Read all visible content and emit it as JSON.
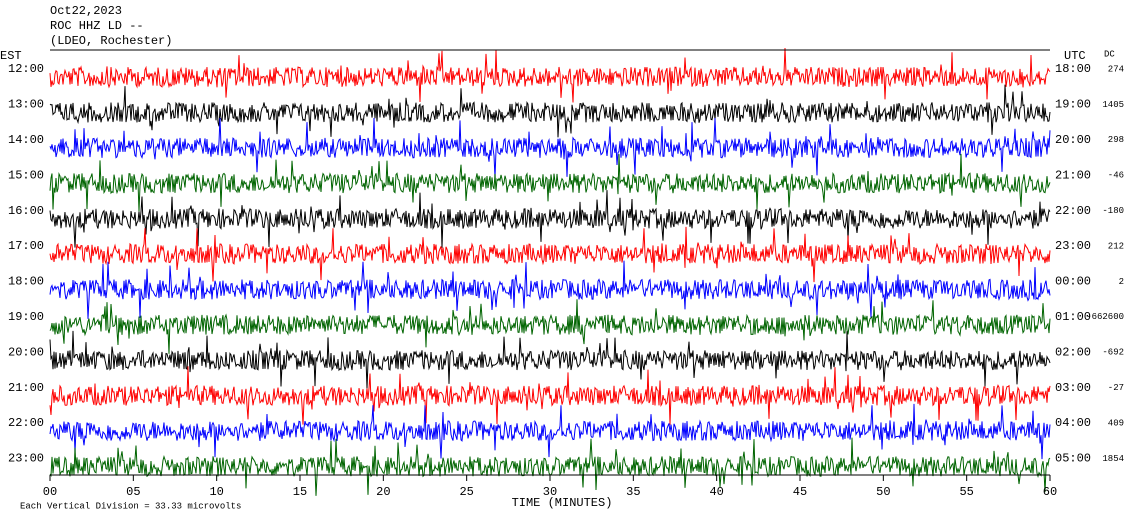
{
  "chart_data": {
    "type": "helicorder",
    "title_lines": [
      "Oct22,2023",
      "ROC HHZ LD --",
      "(LDEO, Rochester)"
    ],
    "left_axis_label": "EST",
    "right_axis_label": "UTC",
    "dc_label": "DC",
    "x_label": "TIME (MINUTES)",
    "footnote": "Each Vertical Division = 33.33 microvolts",
    "xlim": [
      0,
      60
    ],
    "xticks": [
      {
        "value": 0,
        "label": "00"
      },
      {
        "value": 5,
        "label": "05"
      },
      10,
      15,
      20,
      25,
      30,
      35,
      40,
      45,
      50,
      55,
      60
    ],
    "rows": [
      {
        "est": "12:00",
        "utc": "18:00",
        "dc": "274",
        "color": "#ff0000"
      },
      {
        "est": "13:00",
        "utc": "19:00",
        "dc": "1405",
        "color": "#000000"
      },
      {
        "est": "14:00",
        "utc": "20:00",
        "dc": "298",
        "color": "#0000ff"
      },
      {
        "est": "15:00",
        "utc": "21:00",
        "dc": "-46",
        "color": "#006400"
      },
      {
        "est": "16:00",
        "utc": "22:00",
        "dc": "-180",
        "color": "#000000"
      },
      {
        "est": "17:00",
        "utc": "23:00",
        "dc": "212",
        "color": "#ff0000"
      },
      {
        "est": "18:00",
        "utc": "00:00",
        "dc": "2",
        "color": "#0000ff"
      },
      {
        "est": "19:00",
        "utc": "01:00",
        "dc": "-662600",
        "color": "#006400"
      },
      {
        "est": "20:00",
        "utc": "02:00",
        "dc": "-692",
        "color": "#000000"
      },
      {
        "est": "21:00",
        "utc": "03:00",
        "dc": "-27",
        "color": "#ff0000"
      },
      {
        "est": "22:00",
        "utc": "04:00",
        "dc": "409",
        "color": "#0000ff"
      },
      {
        "est": "23:00",
        "utc": "05:00",
        "dc": "1854",
        "color": "#006400"
      }
    ]
  }
}
